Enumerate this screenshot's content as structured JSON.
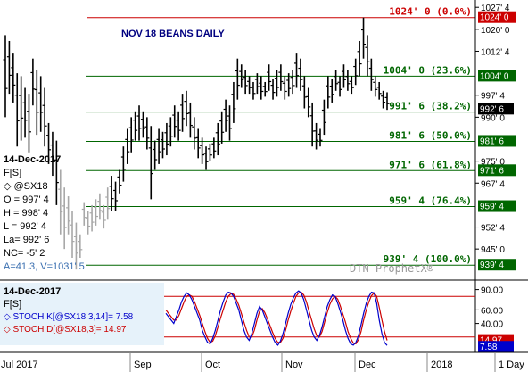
{
  "chart_data": {
    "type": "bar",
    "title": "NOV 18 BEANS DAILY",
    "watermark": "DTN ProphetX®",
    "colors": {
      "bars": "#000000",
      "volume_bars": "#a8a8a8",
      "top_line": "#cc0000",
      "fib_lines": "#006600",
      "fib_label": "#006600",
      "top_label": "#cc0000",
      "title": "#000080",
      "stoch_k": "#0000cc",
      "stoch_d": "#cc0000",
      "stoch_band": "#cc0000",
      "stoch_mid": "#888888",
      "last_price_bg": "#000000",
      "last_stoch_k_bg": "#0000cc"
    },
    "price_axis": {
      "min": 935,
      "max": 1030,
      "ticks": [
        {
          "value": 1027.5,
          "label": "1027' 4"
        },
        {
          "value": 1020,
          "label": "1020' 0"
        },
        {
          "value": 1012.5,
          "label": "1012' 4"
        },
        {
          "value": 997.5,
          "label": "997' 4"
        },
        {
          "value": 990,
          "label": "990' 0"
        },
        {
          "value": 975,
          "label": "975' 0"
        },
        {
          "value": 967.5,
          "label": "967' 4"
        },
        {
          "value": 952.5,
          "label": "952' 4"
        },
        {
          "value": 945,
          "label": "945' 0"
        }
      ]
    },
    "time_axis": {
      "labels": [
        "Jul 2017",
        "Sep",
        "Oct",
        "Nov",
        "Dec",
        "2018",
        "1 Day"
      ]
    },
    "levels": [
      {
        "value": 1024,
        "label": "1024' 0 (0.0%)",
        "tag": "1024' 0",
        "kind": "top"
      },
      {
        "value": 1004,
        "label": "1004' 0 (23.6%)",
        "tag": "1004' 0",
        "kind": "fib"
      },
      {
        "value": 991.75,
        "label": "991' 6 (38.2%)",
        "tag": "",
        "kind": "fib"
      },
      {
        "value": 981.75,
        "label": "981' 6 (50.0%)",
        "tag": "981' 6",
        "kind": "fib"
      },
      {
        "value": 971.75,
        "label": "971' 6 (61.8%)",
        "tag": "971' 6",
        "kind": "fib"
      },
      {
        "value": 959.5,
        "label": "959' 4 (76.4%)",
        "tag": "959' 4",
        "kind": "fib"
      },
      {
        "value": 939.5,
        "label": "939' 4 (100.0%)",
        "tag": "939' 4",
        "kind": "fib"
      }
    ],
    "last_price": {
      "value": 992.75,
      "tag": "992' 6"
    },
    "info_box": {
      "date": "14-Dec-2017",
      "symbol_type": "F[S]",
      "symbol": "@SX18",
      "open": "O = 997' 4",
      "high": "H = 998' 4",
      "low": "L = 992' 4",
      "last": "La= 992' 6",
      "net_change": "NC= -5' 2",
      "stats": "A=41.3, V=1031' 5"
    },
    "ohlc": [
      {
        "h": 1018,
        "l": 990
      },
      {
        "h": 1016,
        "l": 998
      },
      {
        "h": 1012,
        "l": 995
      },
      {
        "h": 1005,
        "l": 980
      },
      {
        "h": 1004,
        "l": 982
      },
      {
        "h": 1000,
        "l": 983
      },
      {
        "h": 998,
        "l": 978
      },
      {
        "h": 1010,
        "l": 994
      },
      {
        "h": 1006,
        "l": 984
      },
      {
        "h": 1004,
        "l": 985
      },
      {
        "h": 1000,
        "l": 980
      },
      {
        "h": 988,
        "l": 974
      },
      {
        "h": 985,
        "l": 970
      },
      {
        "h": 982,
        "l": 960
      },
      {
        "h": 972,
        "l": 950
      },
      {
        "h": 966,
        "l": 945
      },
      {
        "h": 963,
        "l": 950
      },
      {
        "h": 958,
        "l": 942
      },
      {
        "h": 954,
        "l": 938
      },
      {
        "h": 950,
        "l": 942
      },
      {
        "h": 961,
        "l": 953
      },
      {
        "h": 958,
        "l": 950
      },
      {
        "h": 960,
        "l": 951
      },
      {
        "h": 962,
        "l": 953
      },
      {
        "h": 964,
        "l": 955
      },
      {
        "h": 960,
        "l": 952
      },
      {
        "h": 966,
        "l": 955
      },
      {
        "h": 970,
        "l": 958
      },
      {
        "h": 968,
        "l": 958
      },
      {
        "h": 972,
        "l": 964
      },
      {
        "h": 980,
        "l": 968
      },
      {
        "h": 986,
        "l": 974
      },
      {
        "h": 990,
        "l": 978
      },
      {
        "h": 992,
        "l": 982
      },
      {
        "h": 994,
        "l": 982
      },
      {
        "h": 992,
        "l": 983
      },
      {
        "h": 990,
        "l": 979
      },
      {
        "h": 987,
        "l": 962
      },
      {
        "h": 982,
        "l": 972
      },
      {
        "h": 986,
        "l": 974
      },
      {
        "h": 985,
        "l": 976
      },
      {
        "h": 988,
        "l": 977
      },
      {
        "h": 990,
        "l": 980
      },
      {
        "h": 994,
        "l": 983
      },
      {
        "h": 992,
        "l": 982
      },
      {
        "h": 998,
        "l": 985
      },
      {
        "h": 999,
        "l": 987
      },
      {
        "h": 995,
        "l": 983
      },
      {
        "h": 990,
        "l": 979
      },
      {
        "h": 986,
        "l": 976
      },
      {
        "h": 983,
        "l": 974
      },
      {
        "h": 980,
        "l": 972
      },
      {
        "h": 981,
        "l": 975
      },
      {
        "h": 983,
        "l": 976
      },
      {
        "h": 988,
        "l": 977
      },
      {
        "h": 992,
        "l": 981
      },
      {
        "h": 996,
        "l": 985
      },
      {
        "h": 994,
        "l": 982
      },
      {
        "h": 1002,
        "l": 988
      },
      {
        "h": 1010,
        "l": 996
      },
      {
        "h": 1008,
        "l": 1000
      },
      {
        "h": 1006,
        "l": 998
      },
      {
        "h": 1004,
        "l": 998
      },
      {
        "h": 1002,
        "l": 996
      },
      {
        "h": 1005,
        "l": 998
      },
      {
        "h": 1004,
        "l": 996
      },
      {
        "h": 1002,
        "l": 997
      },
      {
        "h": 1008,
        "l": 999
      },
      {
        "h": 1003,
        "l": 996
      },
      {
        "h": 1006,
        "l": 997
      },
      {
        "h": 1008,
        "l": 999
      },
      {
        "h": 1004,
        "l": 996
      },
      {
        "h": 1005,
        "l": 997
      },
      {
        "h": 1006,
        "l": 998
      },
      {
        "h": 1012,
        "l": 1000
      },
      {
        "h": 1010,
        "l": 999
      },
      {
        "h": 1004,
        "l": 993
      },
      {
        "h": 1000,
        "l": 990
      },
      {
        "h": 995,
        "l": 980
      },
      {
        "h": 988,
        "l": 979
      },
      {
        "h": 986,
        "l": 980
      },
      {
        "h": 996,
        "l": 984
      },
      {
        "h": 1004,
        "l": 993
      },
      {
        "h": 1003,
        "l": 995
      },
      {
        "h": 1006,
        "l": 999
      },
      {
        "h": 1004,
        "l": 997
      },
      {
        "h": 1008,
        "l": 1000
      },
      {
        "h": 1006,
        "l": 999
      },
      {
        "h": 1004,
        "l": 998
      },
      {
        "h": 1010,
        "l": 1001
      },
      {
        "h": 1016,
        "l": 1004
      },
      {
        "h": 1024,
        "l": 1010
      },
      {
        "h": 1018,
        "l": 1004
      },
      {
        "h": 1010,
        "l": 999
      },
      {
        "h": 1004,
        "l": 997
      },
      {
        "h": 1002,
        "l": 996
      },
      {
        "h": 999,
        "l": 993
      },
      {
        "h": 998.5,
        "l": 992.5
      }
    ],
    "stochastic": {
      "date": "14-Dec-2017",
      "symbol_type": "F[S]",
      "k_label": "STOCH K[@SX18,3,14]= 7.58",
      "d_label": "STOCH D[@SX18,3]= 14.97",
      "axis": {
        "min": 0,
        "max": 100,
        "ticks": [
          {
            "value": 90,
            "label": "90.00"
          },
          {
            "value": 60,
            "label": "60.00"
          },
          {
            "value": 40,
            "label": "40.00"
          }
        ]
      },
      "bands": [
        80,
        20
      ],
      "last_k": {
        "value": 7.58,
        "tag": "7.58"
      },
      "last_d": {
        "value": 14.97,
        "tag": "14.97"
      },
      "k": [
        55,
        50,
        45,
        40,
        50,
        60,
        72,
        80,
        85,
        82,
        75,
        65,
        55,
        45,
        30,
        20,
        12,
        10,
        18,
        30,
        45,
        60,
        72,
        82,
        86,
        85,
        80,
        70,
        60,
        45,
        30,
        20,
        15,
        25,
        40,
        55,
        65,
        60,
        50,
        40,
        30,
        20,
        12,
        8,
        14,
        25,
        40,
        55,
        68,
        78,
        85,
        88,
        85,
        75,
        60,
        45,
        30,
        20,
        15,
        22,
        35,
        50,
        65,
        75,
        82,
        80,
        70,
        58,
        45,
        30,
        18,
        10,
        8,
        12,
        22,
        38,
        55,
        70,
        80,
        86,
        85,
        70,
        45,
        25,
        12,
        7.58
      ],
      "d": [
        60,
        55,
        50,
        45,
        45,
        52,
        62,
        72,
        80,
        82,
        80,
        72,
        62,
        52,
        40,
        28,
        18,
        12,
        14,
        22,
        35,
        48,
        60,
        72,
        80,
        84,
        83,
        76,
        67,
        55,
        42,
        30,
        20,
        20,
        30,
        45,
        58,
        62,
        56,
        47,
        37,
        27,
        18,
        12,
        12,
        18,
        30,
        45,
        58,
        70,
        80,
        85,
        86,
        82,
        72,
        58,
        45,
        32,
        22,
        20,
        28,
        42,
        56,
        68,
        76,
        80,
        76,
        66,
        54,
        42,
        28,
        18,
        11,
        10,
        16,
        28,
        45,
        60,
        72,
        81,
        85,
        80,
        64,
        45,
        28,
        14.97
      ]
    }
  }
}
